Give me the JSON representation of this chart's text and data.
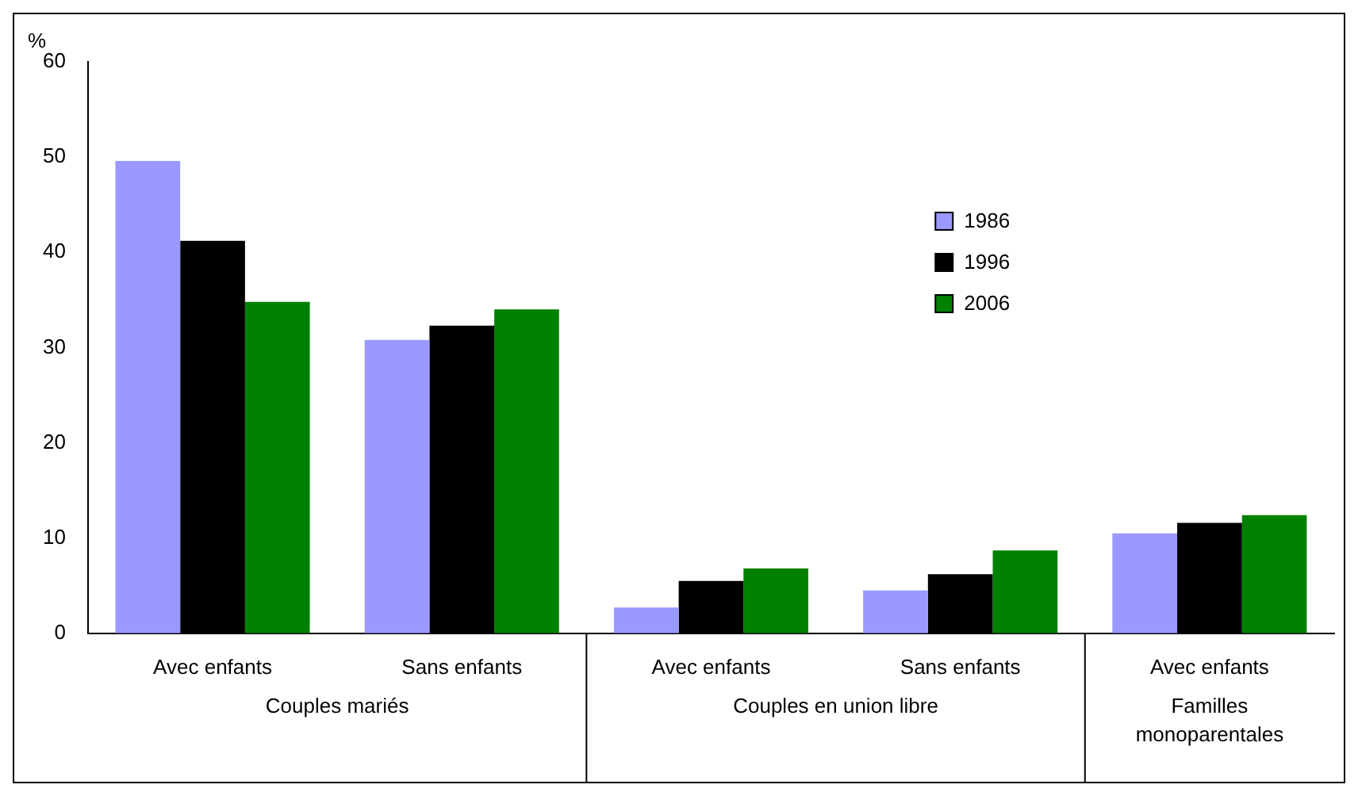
{
  "chart_data": {
    "type": "bar",
    "ylabel": "%",
    "categories": [
      "Avec enfants",
      "Sans enfants",
      "Avec enfants",
      "Sans enfants",
      "Avec enfants"
    ],
    "series": [
      {
        "name": "1986",
        "color": "#9999ff",
        "values": [
          49.6,
          30.8,
          2.7,
          4.5,
          10.5
        ]
      },
      {
        "name": "1996",
        "color": "#000000",
        "values": [
          41.2,
          32.3,
          5.5,
          6.2,
          11.6
        ]
      },
      {
        "name": "2006",
        "color": "#008000",
        "values": [
          34.8,
          34.0,
          6.8,
          8.7,
          12.4
        ]
      }
    ],
    "annotations": [
      "Couples mariés",
      "Couples en union libre",
      "Familles monoparentales"
    ],
    "ylim": [
      0,
      60
    ],
    "yticks": [
      0,
      10,
      20,
      30,
      40,
      50,
      60
    ],
    "grid": false,
    "legend": "top right"
  }
}
